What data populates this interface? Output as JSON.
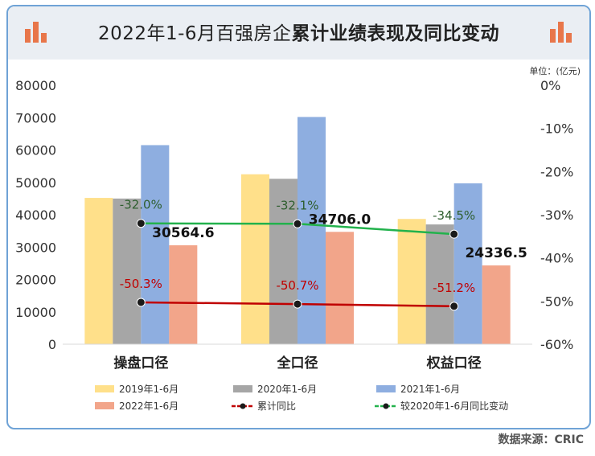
{
  "title": {
    "part1": "2022年1-6月百强房企",
    "part2": "累计业绩表现及同比变动"
  },
  "unit_label": "单位：(亿元)",
  "source": "数据来源：CRIC",
  "colors": {
    "s2019": "#ffe08a",
    "s2020": "#a6a6a6",
    "s2021": "#8eaee0",
    "s2022": "#f2a58a",
    "cum": "#c00000",
    "vs2020": "#22b24c",
    "frame": "#6fa3d6",
    "icon": "#e8764a"
  },
  "chart_data": {
    "type": "bar",
    "categories": [
      "操盘口径",
      "全口径",
      "权益口径"
    ],
    "series": [
      {
        "name": "2019年1-6月",
        "key": "s2019",
        "values": [
          45200,
          52500,
          38700
        ]
      },
      {
        "name": "2020年1-6月",
        "key": "s2020",
        "values": [
          45000,
          51100,
          37000
        ]
      },
      {
        "name": "2021年1-6月",
        "key": "s2021",
        "values": [
          61500,
          70200,
          49700
        ]
      },
      {
        "name": "2022年1-6月",
        "key": "s2022",
        "values": [
          30564.6,
          34706.0,
          24336.5
        ]
      }
    ],
    "bar_labels": [
      "30564.6",
      "34706.0",
      "24336.5"
    ],
    "lines": [
      {
        "name": "累计同比",
        "key": "cum",
        "values": [
          -50.3,
          -50.7,
          -51.2
        ],
        "labels": [
          "-50.3%",
          "-50.7%",
          "-51.2%"
        ]
      },
      {
        "name": "较2020年1-6月同比变动",
        "key": "vs2020",
        "values": [
          -32.0,
          -32.1,
          -34.5
        ],
        "labels": [
          "-32.0%",
          "-32.1%",
          "-34.5%"
        ]
      }
    ],
    "y_left": {
      "min": 0,
      "max": 80000,
      "ticks": [
        "0",
        "10000",
        "20000",
        "30000",
        "40000",
        "50000",
        "60000",
        "70000",
        "80000"
      ]
    },
    "y_right": {
      "min": -60,
      "max": 0,
      "ticks": [
        "-60%",
        "-50%",
        "-40%",
        "-30%",
        "-20%",
        "-10%",
        "0%"
      ]
    },
    "legend_position": "bottom"
  }
}
